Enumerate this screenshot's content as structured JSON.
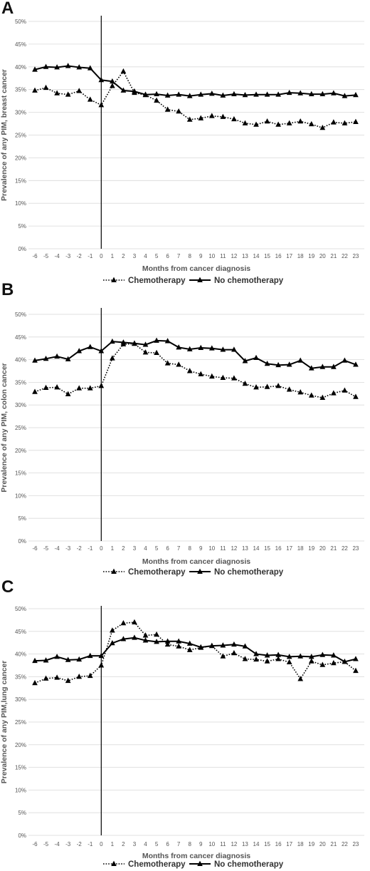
{
  "chart_data": [
    {
      "panel": "A",
      "type": "line",
      "xlabel": "Months from cancer diagnosis",
      "ylabel": "Prevalence of any PIM, breast cancer",
      "ylim": [
        0,
        50
      ],
      "yticks": [
        "0%",
        "5%",
        "10%",
        "15%",
        "20%",
        "25%",
        "30%",
        "35%",
        "40%",
        "45%",
        "50%"
      ],
      "x": [
        -6,
        -5,
        -4,
        -3,
        -2,
        -1,
        0,
        1,
        2,
        3,
        4,
        5,
        6,
        7,
        8,
        9,
        10,
        11,
        12,
        13,
        14,
        15,
        16,
        17,
        18,
        19,
        20,
        21,
        22,
        23
      ],
      "grid": true,
      "legend": "bottom",
      "series": [
        {
          "name": "Chemotherapy",
          "style": "dotted",
          "values": [
            34.8,
            35.4,
            34.2,
            33.9,
            34.7,
            32.8,
            31.6,
            35.8,
            39.0,
            34.3,
            33.8,
            32.6,
            30.6,
            30.2,
            28.4,
            28.7,
            29.2,
            29.0,
            28.5,
            27.6,
            27.3,
            28.0,
            27.3,
            27.6,
            28.0,
            27.4,
            26.6,
            27.8,
            27.6,
            27.9
          ]
        },
        {
          "name": "No chemotherapy",
          "style": "solid",
          "values": [
            39.4,
            40.0,
            39.9,
            40.2,
            39.9,
            39.7,
            37.1,
            36.8,
            34.8,
            34.6,
            33.9,
            34.0,
            33.7,
            33.9,
            33.6,
            33.9,
            34.1,
            33.7,
            34.0,
            33.8,
            33.9,
            33.9,
            33.9,
            34.3,
            34.2,
            34.0,
            34.0,
            34.2,
            33.6,
            33.8
          ]
        }
      ]
    },
    {
      "panel": "B",
      "type": "line",
      "xlabel": "Months from cancer diagnosis",
      "ylabel": "Prevalence of any PIM, colon cancer",
      "ylim": [
        0,
        50
      ],
      "yticks": [
        "0%",
        "5%",
        "10%",
        "15%",
        "20%",
        "25%",
        "30%",
        "35%",
        "40%",
        "45%",
        "50%"
      ],
      "x": [
        -6,
        -5,
        -4,
        -3,
        -2,
        -1,
        0,
        1,
        2,
        3,
        4,
        5,
        6,
        7,
        8,
        9,
        10,
        11,
        12,
        13,
        14,
        15,
        16,
        17,
        18,
        19,
        20,
        21,
        22,
        23
      ],
      "grid": true,
      "legend": "bottom",
      "series": [
        {
          "name": "Chemotherapy",
          "style": "dotted",
          "values": [
            32.9,
            33.8,
            33.9,
            32.4,
            33.7,
            33.7,
            34.2,
            40.3,
            43.4,
            43.5,
            41.6,
            41.5,
            39.2,
            38.9,
            37.5,
            36.8,
            36.3,
            36.0,
            35.9,
            34.7,
            33.9,
            34.0,
            34.2,
            33.4,
            32.8,
            32.1,
            31.6,
            32.6,
            33.2,
            31.8
          ]
        },
        {
          "name": "No chemotherapy",
          "style": "solid",
          "values": [
            39.8,
            40.2,
            40.7,
            40.1,
            41.9,
            42.8,
            41.9,
            44.0,
            43.8,
            43.6,
            43.3,
            44.2,
            44.1,
            42.7,
            42.3,
            42.6,
            42.5,
            42.2,
            42.2,
            39.7,
            40.4,
            39.1,
            38.8,
            38.9,
            39.8,
            38.1,
            38.4,
            38.4,
            39.8,
            38.9
          ]
        }
      ]
    },
    {
      "panel": "C",
      "type": "line",
      "xlabel": "Months from cancer diagnosis",
      "ylabel": "Prevalence of any PIM,lung cancer",
      "ylim": [
        0,
        50
      ],
      "yticks": [
        "0%",
        "5%",
        "10%",
        "15%",
        "20%",
        "25%",
        "30%",
        "35%",
        "40%",
        "45%",
        "50%"
      ],
      "x": [
        -6,
        -5,
        -4,
        -3,
        -2,
        -1,
        0,
        1,
        2,
        3,
        4,
        5,
        6,
        7,
        8,
        9,
        10,
        11,
        12,
        13,
        14,
        15,
        16,
        17,
        18,
        19,
        20,
        21,
        22,
        23
      ],
      "grid": true,
      "legend": "bottom",
      "series": [
        {
          "name": "Chemotherapy",
          "style": "dotted",
          "values": [
            33.6,
            34.6,
            34.8,
            34.1,
            35.0,
            35.2,
            37.5,
            45.2,
            46.8,
            47.0,
            44.1,
            44.3,
            42.1,
            41.7,
            40.9,
            41.4,
            41.8,
            39.5,
            40.2,
            38.9,
            38.8,
            38.4,
            38.9,
            38.2,
            34.5,
            38.4,
            37.6,
            38.0,
            38.3,
            36.3
          ]
        },
        {
          "name": "No chemotherapy",
          "style": "solid",
          "values": [
            38.5,
            38.6,
            39.4,
            38.7,
            38.8,
            39.6,
            39.6,
            42.4,
            43.3,
            43.6,
            43.0,
            42.7,
            42.8,
            42.8,
            42.3,
            41.5,
            41.8,
            41.9,
            42.1,
            41.7,
            40.0,
            39.7,
            39.8,
            39.4,
            39.5,
            39.4,
            39.8,
            39.7,
            38.3,
            38.9
          ]
        }
      ]
    }
  ]
}
